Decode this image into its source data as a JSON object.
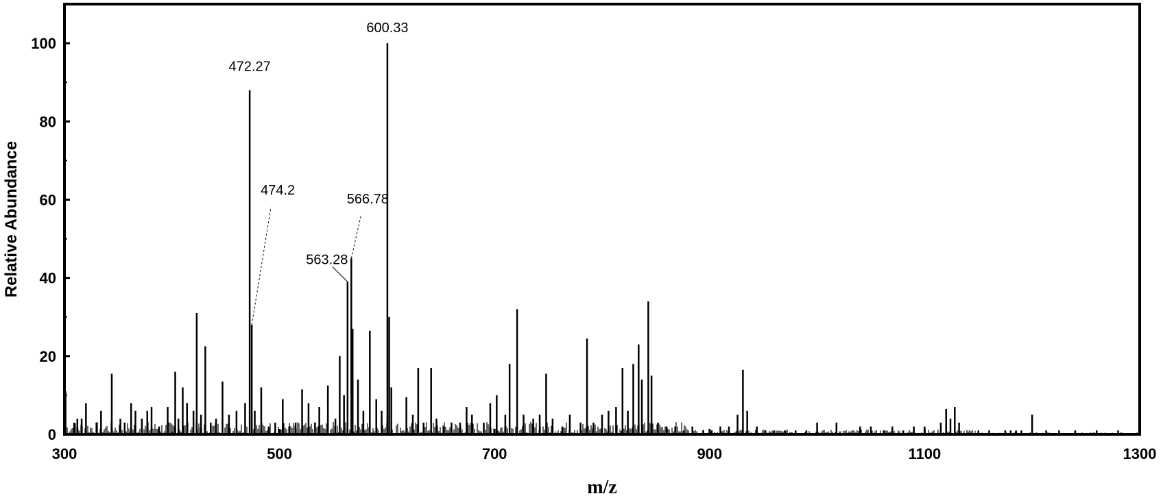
{
  "chart_data": {
    "type": "bar",
    "title": "",
    "xlabel": "m/z",
    "ylabel": "Relative Abundance",
    "xlim": [
      300,
      1300
    ],
    "ylim": [
      0,
      110
    ],
    "x_ticks": [
      300,
      500,
      700,
      900,
      1100,
      1300
    ],
    "y_ticks": [
      0,
      20,
      40,
      60,
      80,
      100
    ],
    "grid": false,
    "annotations": [
      {
        "text": "600.33",
        "x": 600.33,
        "y": 100,
        "leader": false
      },
      {
        "text": "472.27",
        "x": 472.27,
        "y": 88,
        "leader": false
      },
      {
        "text": "474.2",
        "x": 474.2,
        "y": 28,
        "leader": true
      },
      {
        "text": "566.78",
        "x": 566.78,
        "y": 45,
        "leader": true
      },
      {
        "text": "563.28",
        "x": 563.28,
        "y": 39,
        "leader": true
      }
    ],
    "peaks": [
      [
        301,
        11
      ],
      [
        309,
        3
      ],
      [
        312,
        4
      ],
      [
        316,
        4
      ],
      [
        320,
        8
      ],
      [
        330,
        3
      ],
      [
        334,
        6
      ],
      [
        344,
        15.5
      ],
      [
        352,
        4
      ],
      [
        356,
        3
      ],
      [
        362,
        8
      ],
      [
        366,
        6
      ],
      [
        372,
        4
      ],
      [
        377,
        6
      ],
      [
        381,
        7
      ],
      [
        388,
        2
      ],
      [
        396,
        7
      ],
      [
        403,
        16
      ],
      [
        406,
        4
      ],
      [
        410,
        12
      ],
      [
        414,
        8
      ],
      [
        420,
        6
      ],
      [
        423,
        31
      ],
      [
        427,
        5
      ],
      [
        431,
        22.5
      ],
      [
        436,
        3
      ],
      [
        441,
        4
      ],
      [
        447,
        13.5
      ],
      [
        453,
        5
      ],
      [
        460,
        6
      ],
      [
        468,
        8
      ],
      [
        472.27,
        88
      ],
      [
        474.2,
        28
      ],
      [
        477,
        6
      ],
      [
        483,
        12
      ],
      [
        490,
        2
      ],
      [
        496,
        3
      ],
      [
        503,
        9
      ],
      [
        509,
        2
      ],
      [
        515,
        3
      ],
      [
        521,
        11.5
      ],
      [
        527,
        8
      ],
      [
        533,
        3
      ],
      [
        537,
        7
      ],
      [
        545,
        12.5
      ],
      [
        552,
        4
      ],
      [
        556,
        20
      ],
      [
        560,
        10
      ],
      [
        563.28,
        39
      ],
      [
        566.78,
        45
      ],
      [
        568,
        27
      ],
      [
        573,
        14
      ],
      [
        578,
        6
      ],
      [
        584,
        26.5
      ],
      [
        590,
        9
      ],
      [
        595,
        6
      ],
      [
        600.33,
        100
      ],
      [
        602,
        30
      ],
      [
        604,
        12
      ],
      [
        618,
        9.5
      ],
      [
        624,
        5
      ],
      [
        629,
        17
      ],
      [
        634,
        3
      ],
      [
        641,
        17
      ],
      [
        646,
        4
      ],
      [
        653,
        2
      ],
      [
        660,
        3
      ],
      [
        668,
        3
      ],
      [
        674,
        7
      ],
      [
        679,
        5
      ],
      [
        690,
        3
      ],
      [
        696,
        8
      ],
      [
        702,
        10
      ],
      [
        710,
        5
      ],
      [
        714,
        18
      ],
      [
        721,
        32
      ],
      [
        727,
        5
      ],
      [
        736,
        4
      ],
      [
        742,
        5
      ],
      [
        748,
        15.5
      ],
      [
        754,
        4
      ],
      [
        763,
        2
      ],
      [
        770,
        5
      ],
      [
        780,
        3
      ],
      [
        786,
        24.5
      ],
      [
        792,
        3
      ],
      [
        800,
        5
      ],
      [
        806,
        6
      ],
      [
        813,
        7
      ],
      [
        819,
        17
      ],
      [
        824,
        6
      ],
      [
        829,
        18
      ],
      [
        834,
        23
      ],
      [
        837,
        14
      ],
      [
        843,
        34
      ],
      [
        846,
        15
      ],
      [
        852,
        3
      ],
      [
        860,
        2
      ],
      [
        868,
        2
      ],
      [
        876,
        1
      ],
      [
        884,
        2
      ],
      [
        894,
        1
      ],
      [
        902,
        1
      ],
      [
        910,
        2
      ],
      [
        918,
        2
      ],
      [
        926,
        5
      ],
      [
        931,
        16.5
      ],
      [
        935,
        6
      ],
      [
        944,
        2
      ],
      [
        952,
        1
      ],
      [
        960,
        1
      ],
      [
        970,
        1
      ],
      [
        980,
        1
      ],
      [
        990,
        1
      ],
      [
        1000,
        3
      ],
      [
        1018,
        3
      ],
      [
        1040,
        2
      ],
      [
        1050,
        2
      ],
      [
        1062,
        1
      ],
      [
        1070,
        2
      ],
      [
        1080,
        1
      ],
      [
        1090,
        2
      ],
      [
        1100,
        2
      ],
      [
        1115,
        3
      ],
      [
        1120,
        6.5
      ],
      [
        1124,
        4
      ],
      [
        1128,
        7
      ],
      [
        1132,
        3
      ],
      [
        1150,
        1
      ],
      [
        1160,
        1
      ],
      [
        1175,
        1
      ],
      [
        1180,
        1
      ],
      [
        1185,
        1
      ],
      [
        1190,
        1
      ],
      [
        1200,
        5
      ],
      [
        1213,
        1
      ],
      [
        1225,
        1
      ],
      [
        1240,
        1
      ],
      [
        1260,
        1
      ],
      [
        1280,
        1
      ]
    ]
  }
}
